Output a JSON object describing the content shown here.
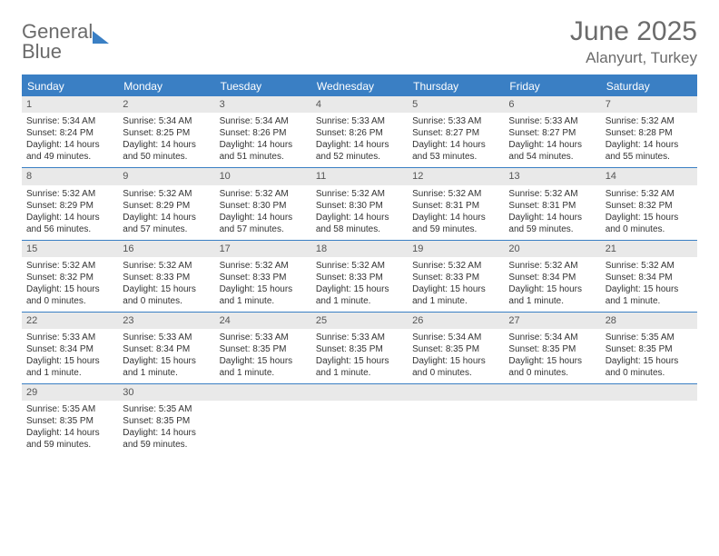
{
  "logo": {
    "line1": "General",
    "line2": "Blue"
  },
  "title": "June 2025",
  "subtitle": "Alanyurt, Turkey",
  "colors": {
    "accent": "#3a7fc4",
    "header_text": "#6b6b6b",
    "daynum_bg": "#e9e9e9",
    "body_text": "#333333",
    "dow_text": "#ffffff",
    "background": "#ffffff"
  },
  "days_of_week": [
    "Sunday",
    "Monday",
    "Tuesday",
    "Wednesday",
    "Thursday",
    "Friday",
    "Saturday"
  ],
  "weeks": [
    [
      {
        "n": "1",
        "sr": "5:34 AM",
        "ss": "8:24 PM",
        "dl": "14 hours and 49 minutes."
      },
      {
        "n": "2",
        "sr": "5:34 AM",
        "ss": "8:25 PM",
        "dl": "14 hours and 50 minutes."
      },
      {
        "n": "3",
        "sr": "5:34 AM",
        "ss": "8:26 PM",
        "dl": "14 hours and 51 minutes."
      },
      {
        "n": "4",
        "sr": "5:33 AM",
        "ss": "8:26 PM",
        "dl": "14 hours and 52 minutes."
      },
      {
        "n": "5",
        "sr": "5:33 AM",
        "ss": "8:27 PM",
        "dl": "14 hours and 53 minutes."
      },
      {
        "n": "6",
        "sr": "5:33 AM",
        "ss": "8:27 PM",
        "dl": "14 hours and 54 minutes."
      },
      {
        "n": "7",
        "sr": "5:32 AM",
        "ss": "8:28 PM",
        "dl": "14 hours and 55 minutes."
      }
    ],
    [
      {
        "n": "8",
        "sr": "5:32 AM",
        "ss": "8:29 PM",
        "dl": "14 hours and 56 minutes."
      },
      {
        "n": "9",
        "sr": "5:32 AM",
        "ss": "8:29 PM",
        "dl": "14 hours and 57 minutes."
      },
      {
        "n": "10",
        "sr": "5:32 AM",
        "ss": "8:30 PM",
        "dl": "14 hours and 57 minutes."
      },
      {
        "n": "11",
        "sr": "5:32 AM",
        "ss": "8:30 PM",
        "dl": "14 hours and 58 minutes."
      },
      {
        "n": "12",
        "sr": "5:32 AM",
        "ss": "8:31 PM",
        "dl": "14 hours and 59 minutes."
      },
      {
        "n": "13",
        "sr": "5:32 AM",
        "ss": "8:31 PM",
        "dl": "14 hours and 59 minutes."
      },
      {
        "n": "14",
        "sr": "5:32 AM",
        "ss": "8:32 PM",
        "dl": "15 hours and 0 minutes."
      }
    ],
    [
      {
        "n": "15",
        "sr": "5:32 AM",
        "ss": "8:32 PM",
        "dl": "15 hours and 0 minutes."
      },
      {
        "n": "16",
        "sr": "5:32 AM",
        "ss": "8:33 PM",
        "dl": "15 hours and 0 minutes."
      },
      {
        "n": "17",
        "sr": "5:32 AM",
        "ss": "8:33 PM",
        "dl": "15 hours and 1 minute."
      },
      {
        "n": "18",
        "sr": "5:32 AM",
        "ss": "8:33 PM",
        "dl": "15 hours and 1 minute."
      },
      {
        "n": "19",
        "sr": "5:32 AM",
        "ss": "8:33 PM",
        "dl": "15 hours and 1 minute."
      },
      {
        "n": "20",
        "sr": "5:32 AM",
        "ss": "8:34 PM",
        "dl": "15 hours and 1 minute."
      },
      {
        "n": "21",
        "sr": "5:32 AM",
        "ss": "8:34 PM",
        "dl": "15 hours and 1 minute."
      }
    ],
    [
      {
        "n": "22",
        "sr": "5:33 AM",
        "ss": "8:34 PM",
        "dl": "15 hours and 1 minute."
      },
      {
        "n": "23",
        "sr": "5:33 AM",
        "ss": "8:34 PM",
        "dl": "15 hours and 1 minute."
      },
      {
        "n": "24",
        "sr": "5:33 AM",
        "ss": "8:35 PM",
        "dl": "15 hours and 1 minute."
      },
      {
        "n": "25",
        "sr": "5:33 AM",
        "ss": "8:35 PM",
        "dl": "15 hours and 1 minute."
      },
      {
        "n": "26",
        "sr": "5:34 AM",
        "ss": "8:35 PM",
        "dl": "15 hours and 0 minutes."
      },
      {
        "n": "27",
        "sr": "5:34 AM",
        "ss": "8:35 PM",
        "dl": "15 hours and 0 minutes."
      },
      {
        "n": "28",
        "sr": "5:35 AM",
        "ss": "8:35 PM",
        "dl": "15 hours and 0 minutes."
      }
    ],
    [
      {
        "n": "29",
        "sr": "5:35 AM",
        "ss": "8:35 PM",
        "dl": "14 hours and 59 minutes."
      },
      {
        "n": "30",
        "sr": "5:35 AM",
        "ss": "8:35 PM",
        "dl": "14 hours and 59 minutes."
      },
      {
        "empty": true
      },
      {
        "empty": true
      },
      {
        "empty": true
      },
      {
        "empty": true
      },
      {
        "empty": true
      }
    ]
  ],
  "labels": {
    "sunrise": "Sunrise:",
    "sunset": "Sunset:",
    "daylight": "Daylight:"
  }
}
